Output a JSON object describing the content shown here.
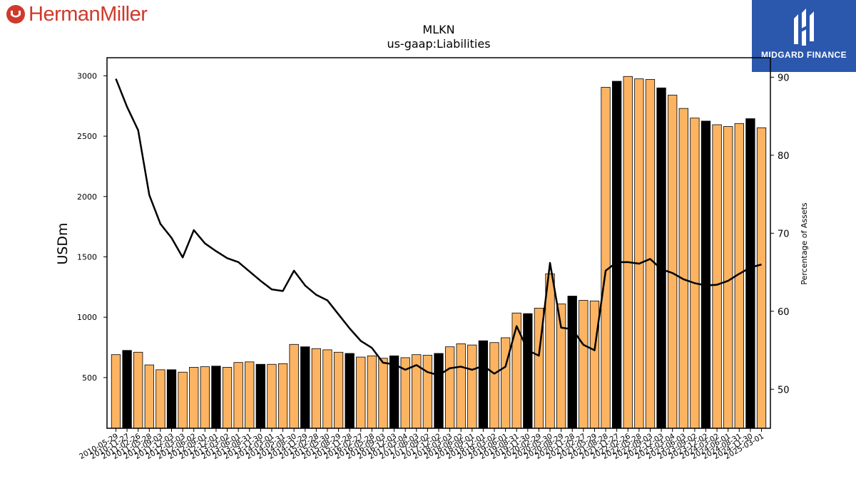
{
  "branding": {
    "left_logo": {
      "text": "HermanMiller",
      "icon": "herman-miller-mark-icon",
      "color": "#d0392b"
    },
    "right_logo": {
      "text": "MIDGARD FINANCE",
      "icon": "midgard-monogram-icon",
      "background": "#2b57ad"
    }
  },
  "chart_data": {
    "type": "bar",
    "title": "MLKN",
    "subtitle": "us-gaap:Liabilities",
    "ylabel": "USDm",
    "ylabel_right": "Percentage of Assets",
    "ylim": [
      80,
      3150
    ],
    "ylim_right": [
      45,
      92.5
    ],
    "yticks": [
      500,
      1000,
      1500,
      2000,
      2500,
      3000
    ],
    "yticks_right": [
      50,
      60,
      70,
      80,
      90
    ],
    "grid": false,
    "legend": "none",
    "colors": {
      "bar": "#fdb462",
      "bar_highlight": "#000000",
      "line": "#000000"
    },
    "categories": [
      "2010-05-29",
      "2010-11-27",
      "2011-02-26",
      "2011-05-28",
      "2011-09-03",
      "2011-12-03",
      "2012-03-03",
      "2012-06-02",
      "2012-09-01",
      "2012-12-01",
      "2013-03-02",
      "2013-06-01",
      "2013-08-31",
      "2013-11-30",
      "2014-03-01",
      "2014-05-31",
      "2014-08-30",
      "2014-11-29",
      "2015-02-28",
      "2015-05-30",
      "2015-08-29",
      "2015-11-28",
      "2016-02-27",
      "2016-05-28",
      "2016-09-03",
      "2016-12-03",
      "2017-03-04",
      "2017-06-03",
      "2017-09-02",
      "2017-12-02",
      "2018-03-03",
      "2018-06-02",
      "2018-09-01",
      "2018-12-01",
      "2019-03-02",
      "2019-06-01",
      "2019-08-31",
      "2019-11-30",
      "2020-02-29",
      "2020-05-30",
      "2020-08-29",
      "2020-11-28",
      "2021-02-27",
      "2021-05-29",
      "2021-08-28",
      "2021-11-27",
      "2022-02-26",
      "2022-05-28",
      "2022-09-03",
      "2022-12-03",
      "2023-03-04",
      "2023-06-03",
      "2023-09-02",
      "2023-12-02",
      "2024-03-02",
      "2024-06-01",
      "2024-08-31",
      "2024-11-30",
      "2025-03-01"
    ],
    "series": [
      {
        "values": [
          690,
          725,
          710,
          605,
          565,
          565,
          545,
          585,
          590,
          595,
          585,
          625,
          630,
          610,
          610,
          615,
          775,
          755,
          740,
          730,
          710,
          700,
          670,
          680,
          660,
          680,
          665,
          690,
          685,
          700,
          755,
          780,
          770,
          805,
          790,
          830,
          1035,
          1030,
          1075,
          1360,
          1110,
          1175,
          1140,
          1135,
          2905,
          2955,
          2995,
          2975,
          2970,
          2900,
          2840,
          2730,
          2650,
          2625,
          2595,
          2580,
          2605,
          2645,
          2570
        ],
        "highlight": [
          false,
          true,
          false,
          false,
          false,
          true,
          false,
          false,
          false,
          true,
          false,
          false,
          false,
          true,
          false,
          false,
          false,
          true,
          false,
          false,
          false,
          true,
          false,
          false,
          false,
          true,
          false,
          false,
          false,
          true,
          false,
          false,
          false,
          true,
          false,
          false,
          false,
          true,
          false,
          false,
          false,
          true,
          false,
          false,
          false,
          true,
          false,
          false,
          false,
          true,
          false,
          false,
          false,
          true,
          false,
          false,
          false,
          true,
          false
        ]
      },
      {
        "axis": "right",
        "type": "line",
        "values": [
          89.8,
          86.2,
          83.2,
          74.9,
          71.2,
          69.4,
          66.9,
          70.4,
          68.7,
          67.7,
          66.8,
          66.3,
          65.1,
          63.9,
          62.8,
          62.6,
          65.2,
          63.3,
          62.1,
          61.4,
          59.6,
          57.8,
          56.2,
          55.3,
          53.4,
          53.2,
          52.5,
          53.1,
          52.2,
          51.8,
          52.7,
          52.9,
          52.5,
          53.0,
          52.0,
          52.9,
          58.1,
          55.0,
          54.3,
          66.2,
          57.9,
          57.7,
          55.7,
          55.0,
          65.2,
          66.3,
          66.3,
          66.1,
          66.7,
          65.4,
          64.9,
          64.1,
          63.6,
          63.3,
          63.4,
          63.9,
          64.8,
          65.6,
          66.0
        ]
      }
    ]
  }
}
